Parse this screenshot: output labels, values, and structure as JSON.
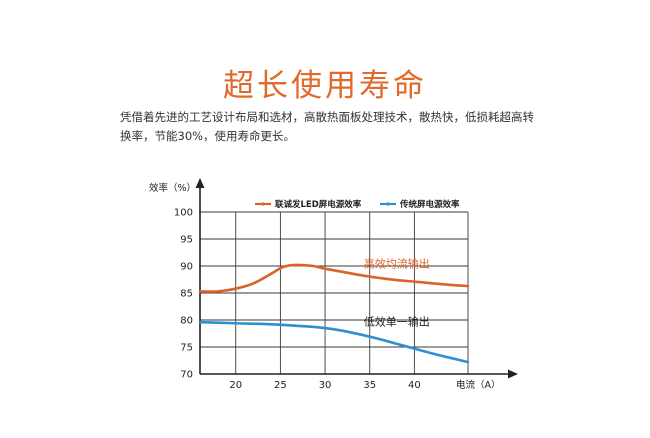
{
  "page": {
    "title": "超长使用寿命",
    "description": "凭借着先进的工艺设计布局和选材，高散热面板处理技术，散热快，低损耗超高转换率，节能30%，使用寿命更长。"
  },
  "chart_data": {
    "type": "line",
    "ylabel": "效率（%）",
    "xlabel": "电流（A）",
    "xlim": [
      16,
      47
    ],
    "ylim": [
      70,
      100
    ],
    "x_ticks": [
      20,
      25,
      30,
      35,
      40
    ],
    "y_ticks": [
      70,
      75,
      80,
      85,
      90,
      95,
      100
    ],
    "grid": true,
    "legend_position": "top",
    "series": [
      {
        "name": "联诚发LED屏电源效率",
        "color": "#d9642b",
        "x": [
          16,
          18,
          20,
          22,
          24,
          25,
          26,
          27,
          28,
          29,
          30,
          32,
          34,
          36,
          38,
          40,
          42,
          44,
          46
        ],
        "y": [
          85.3,
          85.3,
          85.8,
          86.8,
          88.6,
          89.6,
          90.1,
          90.2,
          90.1,
          89.9,
          89.5,
          88.9,
          88.3,
          87.8,
          87.4,
          87.1,
          86.8,
          86.5,
          86.3
        ]
      },
      {
        "name": "传统屏电源效率",
        "color": "#2f8fd0",
        "x": [
          16,
          20,
          24,
          28,
          30,
          32,
          34,
          36,
          38,
          40,
          42,
          44,
          46
        ],
        "y": [
          79.6,
          79.4,
          79.2,
          78.8,
          78.5,
          78.0,
          77.3,
          76.5,
          75.6,
          74.7,
          73.8,
          73.0,
          72.2
        ]
      }
    ],
    "annotations": [
      {
        "text": "高效均流输出",
        "x": 35,
        "y": 90.5,
        "color": "#d9642b"
      },
      {
        "text": "低效单一输出",
        "x": 35,
        "y": 79.7,
        "color": "#222222"
      }
    ]
  }
}
